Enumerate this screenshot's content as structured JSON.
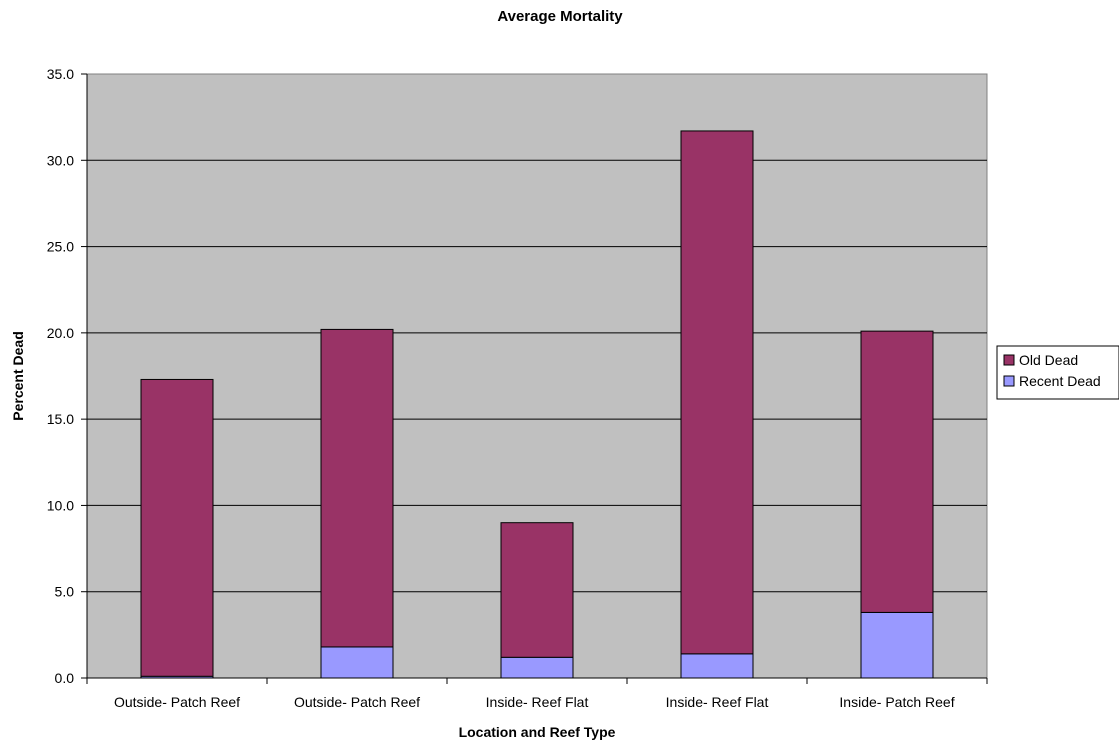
{
  "chart_data": {
    "type": "bar",
    "stacked": true,
    "title": "Average Mortality",
    "xlabel": "Location and Reef Type",
    "ylabel": "Percent Dead",
    "categories": [
      "Outside- Patch Reef",
      "Outside- Patch Reef",
      "Inside- Reef Flat",
      "Inside- Reef Flat",
      "Inside- Patch Reef"
    ],
    "series": [
      {
        "name": "Recent Dead",
        "values": [
          0.1,
          1.8,
          1.2,
          1.4,
          3.8
        ],
        "color": "#9999ff"
      },
      {
        "name": "Old Dead",
        "values": [
          17.2,
          18.4,
          7.8,
          30.3,
          16.3
        ],
        "color": "#993366"
      }
    ],
    "yticks": [
      "0.0",
      "5.0",
      "10.0",
      "15.0",
      "20.0",
      "25.0",
      "30.0",
      "35.0"
    ],
    "ylim": [
      0,
      35
    ],
    "grid": true,
    "plot_background": "#c0c0c0",
    "legend_position": "right",
    "legend_order": [
      "Old Dead",
      "Recent Dead"
    ]
  }
}
